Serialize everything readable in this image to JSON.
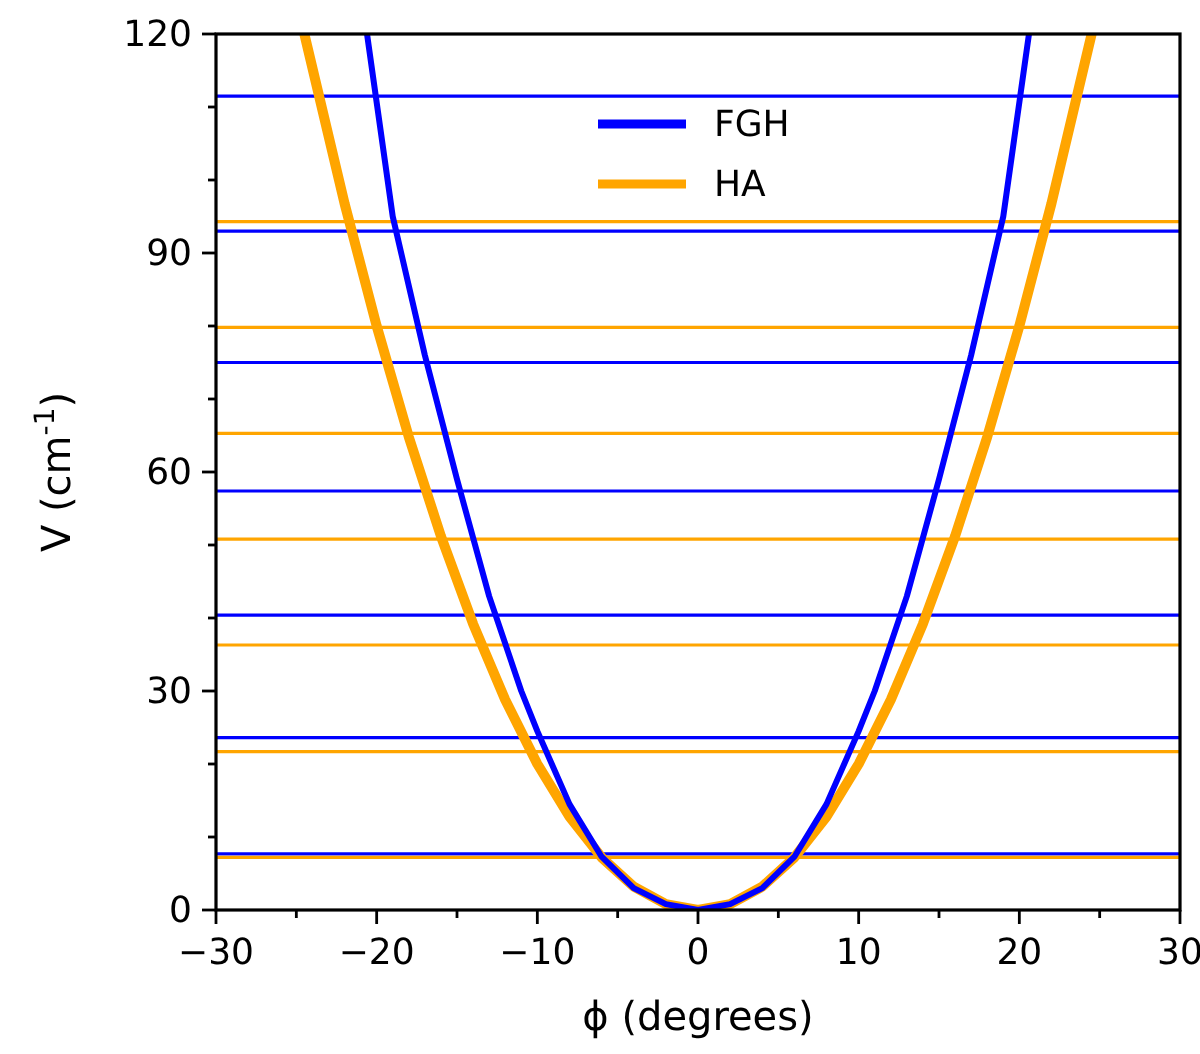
{
  "chart_data": {
    "type": "line",
    "xlabel": "ϕ (degrees)",
    "ylabel": "V (cm$^{-1}$)",
    "xlim": [
      -30,
      30
    ],
    "ylim": [
      0,
      120
    ],
    "xticks": [
      -30,
      {
        "value": -25,
        "label": null
      },
      -20,
      {
        "value": -15,
        "label": null
      },
      -10,
      {
        "value": -5,
        "label": null
      },
      0,
      {
        "value": 5,
        "label": null
      },
      10,
      {
        "value": 15,
        "label": null
      },
      20,
      {
        "value": 25,
        "label": null
      },
      30
    ],
    "yticks": [
      0,
      {
        "value": 10,
        "label": null
      },
      {
        "value": 20,
        "label": null
      },
      30,
      {
        "value": 40,
        "label": null
      },
      {
        "value": 50,
        "label": null
      },
      60,
      {
        "value": 70,
        "label": null
      },
      {
        "value": 80,
        "label": null
      },
      90,
      {
        "value": 100,
        "label": null
      },
      {
        "value": 110,
        "label": null
      },
      120
    ],
    "grid": false,
    "legend": "top",
    "series": [
      {
        "name": "FGH",
        "color": "#0000ff",
        "x": [
          -20.6,
          -19,
          -17,
          -15,
          -13,
          -11,
          -10,
          -8,
          -6,
          -4,
          -2,
          0,
          2,
          4,
          6,
          8,
          10,
          11,
          13,
          15,
          17,
          19,
          20.6
        ],
        "values": [
          120,
          95,
          76,
          59,
          43,
          30,
          24.5,
          14.5,
          7.3,
          3.0,
          0.8,
          0,
          0.8,
          3.0,
          7.3,
          14.5,
          24.5,
          30,
          43,
          59,
          76,
          95,
          120
        ]
      },
      {
        "name": "HA",
        "color": "#ffa500",
        "x": [
          -24.5,
          -22,
          -20,
          -18,
          -16,
          -14,
          -12,
          -10,
          -8,
          -6,
          -4,
          -2,
          0,
          2,
          4,
          6,
          8,
          10,
          12,
          14,
          16,
          18,
          20,
          22,
          24.5
        ],
        "values": [
          120,
          96.8,
          80,
          64.8,
          51.2,
          39.2,
          28.8,
          20,
          12.8,
          7.2,
          3.2,
          0.8,
          0,
          0.8,
          3.2,
          7.2,
          12.8,
          20,
          28.8,
          39.2,
          51.2,
          64.8,
          80,
          96.8,
          120
        ]
      }
    ],
    "ref_lines": [
      {
        "axis": "y",
        "value": 7.7,
        "color": "#0000ff"
      },
      {
        "axis": "y",
        "value": 23.6,
        "color": "#0000ff"
      },
      {
        "axis": "y",
        "value": 40.4,
        "color": "#0000ff"
      },
      {
        "axis": "y",
        "value": 57.4,
        "color": "#0000ff"
      },
      {
        "axis": "y",
        "value": 75.0,
        "color": "#0000ff"
      },
      {
        "axis": "y",
        "value": 93.0,
        "color": "#0000ff"
      },
      {
        "axis": "y",
        "value": 111.5,
        "color": "#0000ff"
      },
      {
        "axis": "y",
        "value": 7.2,
        "color": "#ffa500"
      },
      {
        "axis": "y",
        "value": 21.7,
        "color": "#ffa500"
      },
      {
        "axis": "y",
        "value": 36.3,
        "color": "#ffa500"
      },
      {
        "axis": "y",
        "value": 50.8,
        "color": "#ffa500"
      },
      {
        "axis": "y",
        "value": 65.3,
        "color": "#ffa500"
      },
      {
        "axis": "y",
        "value": 79.8,
        "color": "#ffa500"
      },
      {
        "axis": "y",
        "value": 94.3,
        "color": "#ffa500"
      }
    ]
  }
}
